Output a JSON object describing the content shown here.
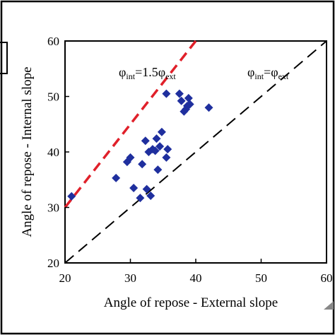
{
  "chart_data": {
    "type": "scatter",
    "title": "",
    "xlabel": "Angle of repose - External slope",
    "ylabel": "Angle of repose - Internal slope",
    "xlim": [
      20,
      60
    ],
    "ylim": [
      20,
      60
    ],
    "x_ticks": [
      "20",
      "30",
      "40",
      "50",
      "60"
    ],
    "y_ticks": [
      "20",
      "30",
      "40",
      "50",
      "60"
    ],
    "grid": false,
    "marker_color": "#1f2f9e",
    "series": [
      {
        "marker": "diamond",
        "points": [
          [
            21,
            32
          ],
          [
            27.8,
            35.3
          ],
          [
            29.5,
            38.2
          ],
          [
            30,
            39
          ],
          [
            30.5,
            33.5
          ],
          [
            31.5,
            31.7
          ],
          [
            31.8,
            37.8
          ],
          [
            32.3,
            42
          ],
          [
            32.5,
            33.3
          ],
          [
            32.8,
            40
          ],
          [
            33.1,
            32.1
          ],
          [
            33.4,
            40.5
          ],
          [
            33.8,
            40.2
          ],
          [
            34,
            42.4
          ],
          [
            34.2,
            36.8
          ],
          [
            34.5,
            41
          ],
          [
            34.8,
            43.6
          ],
          [
            35.5,
            39
          ],
          [
            35.7,
            40.5
          ],
          [
            35.5,
            50.5
          ],
          [
            37.5,
            50.5
          ],
          [
            37.8,
            49.2
          ],
          [
            38.2,
            47.3
          ],
          [
            38.5,
            47.7
          ],
          [
            38.7,
            48.3
          ],
          [
            38.9,
            49.7
          ],
          [
            39.1,
            48.6
          ],
          [
            42,
            48
          ]
        ]
      }
    ],
    "reference_lines": [
      {
        "label_prefix": "φ",
        "label_sub1": "int",
        "label_mid": "=1.5φ",
        "label_sub2": "ext",
        "slope": 1.5,
        "color": "#e0202a",
        "style": "dashed"
      },
      {
        "label_prefix": "φ",
        "label_sub1": "int",
        "label_mid": "=φ",
        "label_sub2": "ext",
        "slope": 1.0,
        "color": "#000000",
        "style": "dashed"
      }
    ]
  }
}
